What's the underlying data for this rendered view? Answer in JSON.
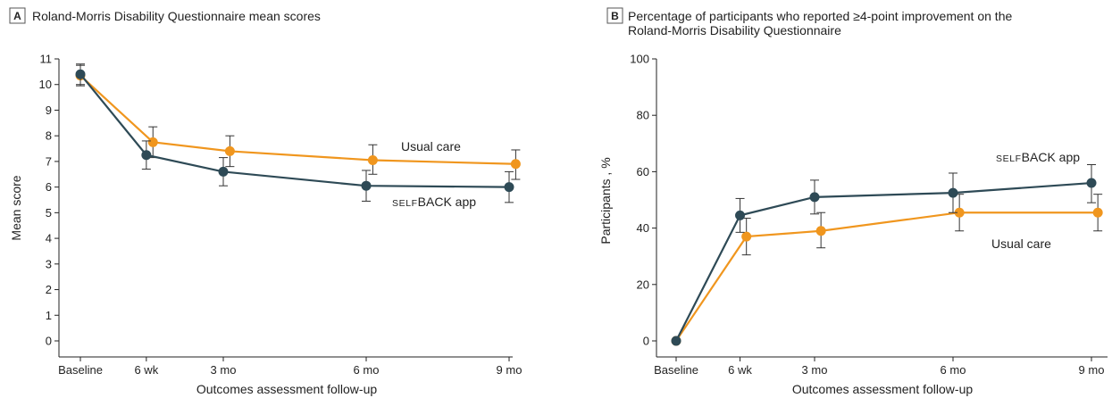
{
  "panels": [
    {
      "badge": "A",
      "title_lines": [
        "Roland-Morris Disability Questionnaire mean scores"
      ],
      "chart_data": {
        "type": "line",
        "categories": [
          "Baseline",
          "6 wk",
          "3 mo",
          "6 mo",
          "9 mo"
        ],
        "x_weeks": [
          0,
          6,
          13,
          26,
          39
        ],
        "xlabel": "Outcomes assessment follow-up",
        "ylabel": "Mean score",
        "ylim": [
          0,
          11
        ],
        "yticks": [
          0,
          1,
          2,
          3,
          4,
          5,
          6,
          7,
          8,
          9,
          10,
          11
        ],
        "grid": false,
        "error_bars": true,
        "series": [
          {
            "name": "SELFBACK app",
            "name_label": {
              "small_caps": "self",
              "rest": "BACK app"
            },
            "color": "#2e4a56",
            "values": [
              10.4,
              7.25,
              6.6,
              6.05,
              6.0
            ],
            "lower": [
              10.0,
              6.7,
              6.05,
              5.45,
              5.4
            ],
            "upper": [
              10.8,
              7.8,
              7.15,
              6.65,
              6.6
            ],
            "x_offset_weeks": [
              0,
              0,
              0,
              0,
              0
            ]
          },
          {
            "name": "Usual care",
            "color": "#f0961e",
            "values": [
              10.35,
              7.75,
              7.4,
              7.05,
              6.9
            ],
            "lower": [
              9.95,
              7.15,
              6.8,
              6.5,
              6.3
            ],
            "upper": [
              10.75,
              8.35,
              8.0,
              7.65,
              7.45
            ],
            "x_offset_weeks": [
              0,
              0.6,
              0.6,
              0.6,
              0.6
            ]
          }
        ]
      }
    },
    {
      "badge": "B",
      "title_lines": [
        "Percentage of participants who reported ≥4-point improvement on the",
        "Roland-Morris Disability Questionnaire"
      ],
      "chart_data": {
        "type": "line",
        "categories": [
          "Baseline",
          "6 wk",
          "3 mo",
          "6 mo",
          "9 mo"
        ],
        "x_weeks": [
          0,
          6,
          13,
          26,
          39
        ],
        "xlabel": "Outcomes assessment follow-up",
        "ylabel": "Participants , %",
        "ylim": [
          0,
          100
        ],
        "yticks": [
          0,
          20,
          40,
          60,
          80,
          100
        ],
        "grid": false,
        "error_bars": true,
        "series": [
          {
            "name": "SELFBACK app",
            "name_label": {
              "small_caps": "self",
              "rest": "BACK app"
            },
            "color": "#2e4a56",
            "values": [
              0,
              44.5,
              51.0,
              52.5,
              56.0
            ],
            "lower": [
              0,
              38.5,
              45.0,
              45.5,
              49.0
            ],
            "upper": [
              0,
              50.5,
              57.0,
              59.5,
              62.5
            ],
            "x_offset_weeks": [
              0,
              0,
              0,
              0,
              0
            ]
          },
          {
            "name": "Usual care",
            "color": "#f0961e",
            "values": [
              0,
              37.0,
              39.0,
              45.5,
              45.5
            ],
            "lower": [
              0,
              30.5,
              33.0,
              39.0,
              39.0
            ],
            "upper": [
              0,
              43.5,
              45.5,
              52.0,
              52.0
            ],
            "x_offset_weeks": [
              0,
              0.6,
              0.6,
              0.6,
              0.6
            ]
          }
        ]
      }
    }
  ]
}
